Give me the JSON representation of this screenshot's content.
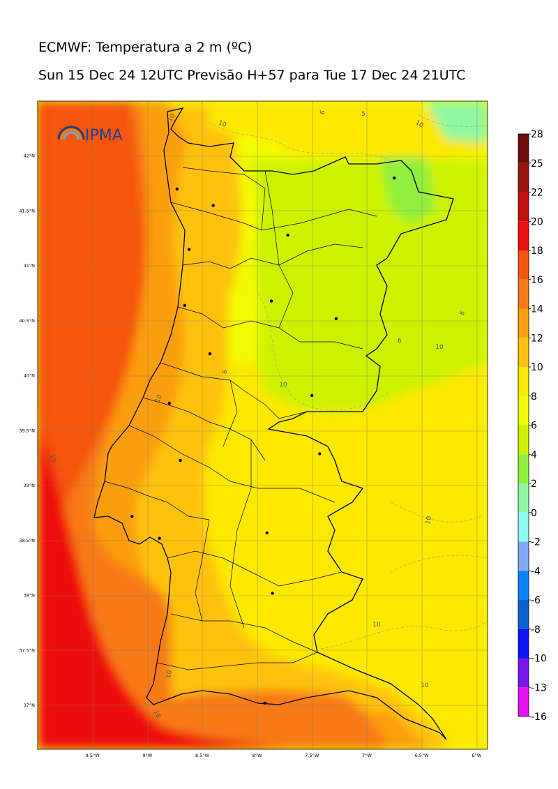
{
  "title": "ECMWF: Temperatura a 2 m (ºC)",
  "subtitle": "Sun 15 Dec 24 12UTC Previsão H+57 para Tue 17 Dec 24 21UTC",
  "logo": "IPMA",
  "map": {
    "lon_range": [
      -10.0,
      -5.9
    ],
    "lat_range": [
      36.6,
      42.5
    ],
    "lat_ticks": [
      "42°N",
      "41.5°N",
      "41°N",
      "40.5°N",
      "40°N",
      "39.5°N",
      "39°N",
      "38.5°N",
      "38°N",
      "37.5°N",
      "37°N"
    ],
    "lon_ticks": [
      "9.5°W",
      "9°W",
      "8.5°W",
      "8°W",
      "7.5°W",
      "7°W",
      "6.5°W",
      "6°W"
    ],
    "contour_labels": [
      "10",
      "10",
      "6",
      "5",
      "10",
      "6",
      "6",
      "10",
      "6",
      "10",
      "10",
      "10",
      "10",
      "10",
      "18",
      "10",
      "10"
    ],
    "cities": [
      {
        "lon": -8.62,
        "lat": 41.15
      },
      {
        "lon": -8.4,
        "lat": 41.55
      },
      {
        "lon": -8.73,
        "lat": 41.7
      },
      {
        "lon": -7.72,
        "lat": 41.28
      },
      {
        "lon": -6.75,
        "lat": 41.8
      },
      {
        "lon": -7.87,
        "lat": 40.68
      },
      {
        "lon": -7.28,
        "lat": 40.52
      },
      {
        "lon": -8.66,
        "lat": 40.64
      },
      {
        "lon": -8.43,
        "lat": 40.2
      },
      {
        "lon": -8.8,
        "lat": 39.75
      },
      {
        "lon": -7.5,
        "lat": 39.82
      },
      {
        "lon": -8.7,
        "lat": 39.23
      },
      {
        "lon": -7.43,
        "lat": 39.29
      },
      {
        "lon": -9.14,
        "lat": 38.72
      },
      {
        "lon": -8.89,
        "lat": 38.52
      },
      {
        "lon": -7.91,
        "lat": 38.57
      },
      {
        "lon": -7.86,
        "lat": 38.02
      },
      {
        "lon": -7.93,
        "lat": 37.02
      }
    ]
  },
  "colorbar": {
    "labels": [
      "28",
      "25",
      "22",
      "20",
      "18",
      "16",
      "14",
      "12",
      "10",
      "8",
      "6",
      "4",
      "2",
      "0",
      "-2",
      "-4",
      "-6",
      "-8",
      "-10",
      "-13",
      "-16"
    ],
    "colors": [
      "#6e0c0a",
      "#9a140f",
      "#c4100e",
      "#ee1010",
      "#f55510",
      "#f77a14",
      "#fb9e10",
      "#fec20c",
      "#fde800",
      "#f3fb00",
      "#ccf200",
      "#8ff03c",
      "#8ff7a0",
      "#8cfff4",
      "#84a8f6",
      "#0a82fc",
      "#0a62d2",
      "#0a14f6",
      "#7a16ec",
      "#e610f2"
    ]
  }
}
